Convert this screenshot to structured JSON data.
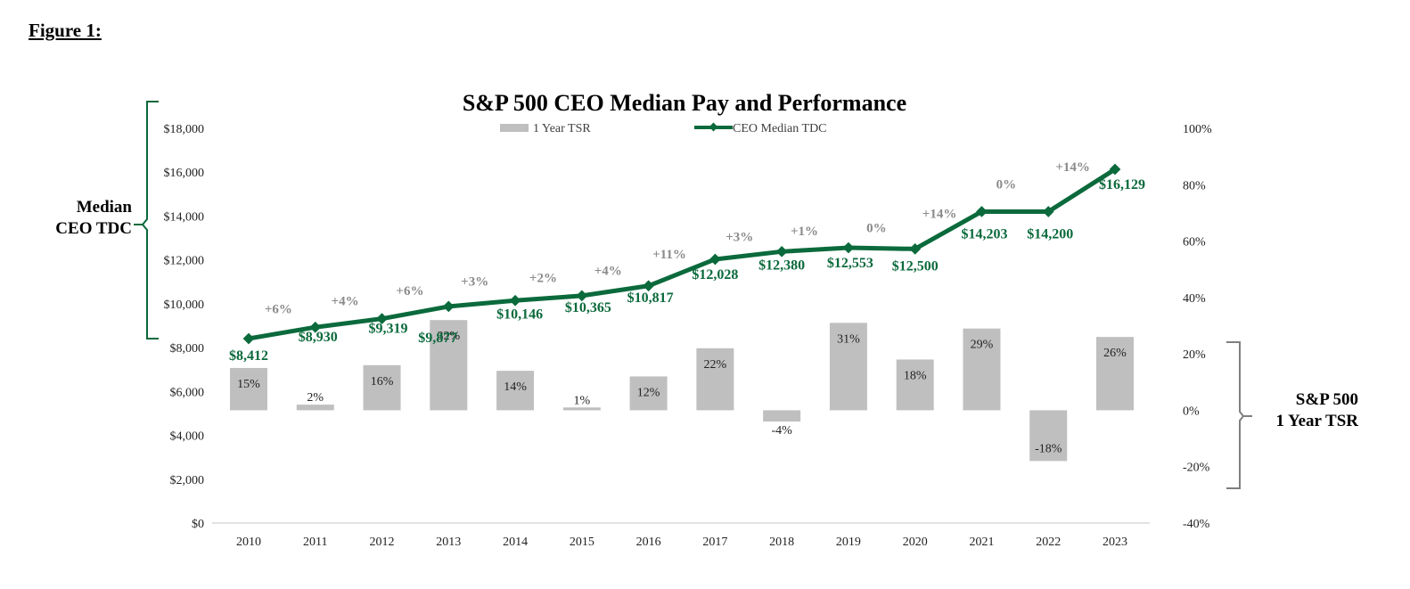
{
  "figure_label": "Figure 1:",
  "colors": {
    "line": "#0b6a3c",
    "bar": "#bfbfbf",
    "pct_label": "#8a8a8a",
    "bracket_left": "#0b6a3c",
    "bracket_right": "#7f7f7f"
  },
  "chart_data": {
    "type": "bar+line",
    "title": "S&P 500 CEO Median Pay and Performance",
    "categories": [
      "2010",
      "2011",
      "2012",
      "2013",
      "2014",
      "2015",
      "2016",
      "2017",
      "2018",
      "2019",
      "2020",
      "2021",
      "2022",
      "2023"
    ],
    "series": [
      {
        "name": "1 Year TSR",
        "type": "bar",
        "axis": "right",
        "values": [
          15,
          2,
          16,
          32,
          14,
          1,
          12,
          22,
          -4,
          31,
          18,
          29,
          -18,
          26
        ],
        "labels": [
          "15%",
          "2%",
          "16%",
          "32%",
          "14%",
          "1%",
          "12%",
          "22%",
          "-4%",
          "31%",
          "18%",
          "29%",
          "-18%",
          "26%"
        ]
      },
      {
        "name": "CEO Median TDC",
        "type": "line",
        "axis": "left",
        "values": [
          8412,
          8930,
          9319,
          9877,
          10146,
          10365,
          10817,
          12028,
          12380,
          12553,
          12500,
          14203,
          14200,
          16129
        ],
        "labels": [
          "$8,412",
          "$8,930",
          "$9,319",
          "$9,877",
          "$10,146",
          "$10,365",
          "$10,817",
          "$12,028",
          "$12,380",
          "$12,553",
          "$12,500",
          "$14,203",
          "$14,200",
          "$16,129"
        ],
        "change_labels": [
          "+6%",
          "+4%",
          "+6%",
          "+3%",
          "+2%",
          "+4%",
          "+11%",
          "+3%",
          "+1%",
          "0%",
          "+14%",
          "0%",
          "+14%"
        ]
      }
    ],
    "left_axis": {
      "label": "Median CEO TDC",
      "label_lines": [
        "Median",
        "CEO TDC"
      ],
      "ylim": [
        0,
        18000
      ],
      "ticks": [
        "$0",
        "$2,000",
        "$4,000",
        "$6,000",
        "$8,000",
        "$10,000",
        "$12,000",
        "$14,000",
        "$16,000",
        "$18,000"
      ]
    },
    "right_axis": {
      "label": "S&P 500 1 Year TSR",
      "label_lines": [
        "S&P 500",
        "1 Year TSR"
      ],
      "ylim": [
        -40,
        100
      ],
      "ticks": [
        "-40%",
        "-20%",
        "0%",
        "20%",
        "40%",
        "60%",
        "80%",
        "100%"
      ]
    },
    "legend": {
      "position": "top-center",
      "entries": [
        "1 Year TSR",
        "CEO Median TDC"
      ]
    },
    "grid": false
  }
}
